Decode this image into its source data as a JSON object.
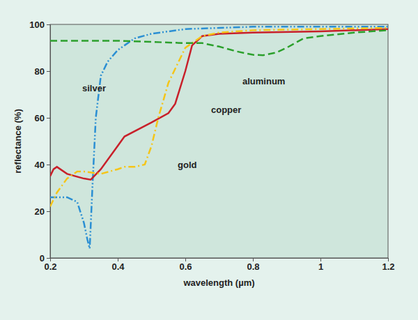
{
  "chart_data": {
    "type": "line",
    "x_label": "wavelength (µm)",
    "y_label": "reflectance (%)",
    "xlim": [
      0.2,
      1.2
    ],
    "ylim": [
      0,
      100
    ],
    "xticks": [
      0.2,
      0.4,
      0.6,
      0.8,
      1,
      1.2
    ],
    "yticks": [
      0,
      20,
      40,
      60,
      80,
      100
    ],
    "grid": false,
    "series": [
      {
        "name": "silver",
        "color": "#2b8fd3",
        "line_style": "dashdotdot",
        "x": [
          0.2,
          0.25,
          0.28,
          0.3,
          0.31,
          0.317,
          0.325,
          0.335,
          0.35,
          0.37,
          0.4,
          0.42,
          0.45,
          0.5,
          0.55,
          0.6,
          0.7,
          0.8,
          1.0,
          1.2
        ],
        "values": [
          26,
          26,
          24,
          15,
          8,
          4,
          30,
          60,
          78,
          84,
          89,
          91,
          94,
          96,
          97,
          98,
          98.5,
          99,
          99,
          99
        ]
      },
      {
        "name": "copper",
        "color": "#c8202a",
        "line_style": "solid",
        "x": [
          0.2,
          0.21,
          0.22,
          0.25,
          0.3,
          0.32,
          0.35,
          0.4,
          0.42,
          0.5,
          0.55,
          0.57,
          0.6,
          0.62,
          0.65,
          0.7,
          0.8,
          1.0,
          1.2
        ],
        "values": [
          35,
          38,
          39,
          36,
          34,
          33.5,
          38,
          48,
          52,
          58,
          62,
          66,
          80,
          91,
          95,
          96,
          96.5,
          97,
          98
        ]
      },
      {
        "name": "gold",
        "color": "#f5c518",
        "line_style": "dashdot",
        "x": [
          0.2,
          0.22,
          0.25,
          0.28,
          0.3,
          0.35,
          0.4,
          0.42,
          0.45,
          0.48,
          0.5,
          0.52,
          0.55,
          0.6,
          0.65,
          0.7,
          0.8,
          1.0,
          1.2
        ],
        "values": [
          22,
          28,
          34,
          37,
          37,
          36,
          38,
          39,
          39,
          40,
          48,
          60,
          75,
          90,
          95,
          96.5,
          97.5,
          98,
          98.5
        ]
      },
      {
        "name": "aluminum",
        "color": "#2ca02c",
        "line_style": "dashed",
        "x": [
          0.2,
          0.3,
          0.4,
          0.5,
          0.6,
          0.65,
          0.7,
          0.75,
          0.8,
          0.83,
          0.87,
          0.9,
          0.95,
          1.0,
          1.1,
          1.2
        ],
        "values": [
          93,
          93,
          93,
          92.5,
          92,
          92,
          90.5,
          88.5,
          87,
          86.8,
          88,
          90,
          94,
          95,
          96.5,
          97.5
        ]
      }
    ]
  }
}
